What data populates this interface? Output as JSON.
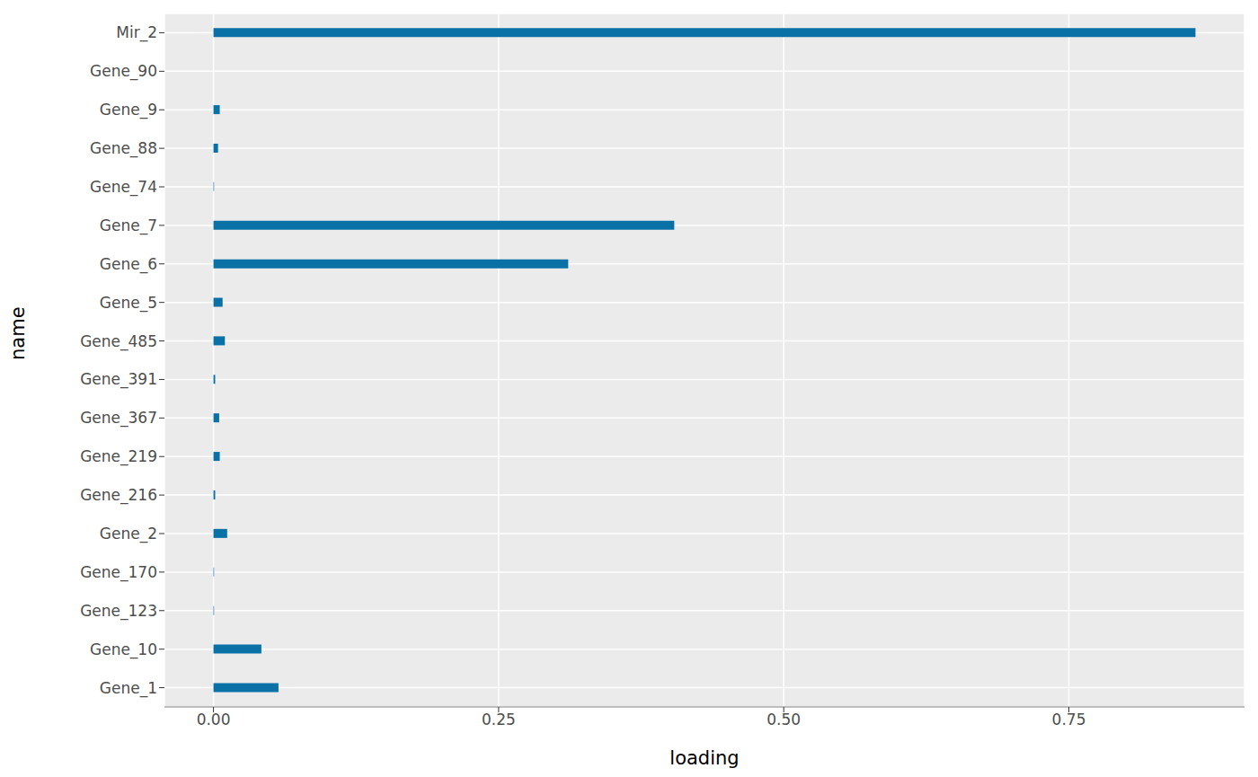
{
  "chart_data": {
    "type": "bar",
    "orientation": "horizontal",
    "x_label": "loading",
    "y_label": "name",
    "categories": [
      "Mir_2",
      "Gene_90",
      "Gene_9",
      "Gene_88",
      "Gene_74",
      "Gene_7",
      "Gene_6",
      "Gene_5",
      "Gene_485",
      "Gene_391",
      "Gene_367",
      "Gene_219",
      "Gene_216",
      "Gene_2",
      "Gene_170",
      "Gene_123",
      "Gene_10",
      "Gene_1"
    ],
    "values": [
      0.861,
      0,
      0.0055,
      0.004,
      0.0005,
      0.404,
      0.311,
      0.008,
      0.01,
      0.0015,
      0.005,
      0.0055,
      0.0015,
      0.012,
      0.0005,
      0.0005,
      0.042,
      0.057
    ],
    "color": "#0a71a7",
    "xlim": [
      -0.043,
      0.904
    ],
    "xticks": [
      {
        "value": 0,
        "label": "0.00"
      },
      {
        "value": 0.25,
        "label": "0.25"
      },
      {
        "value": 0.5,
        "label": "0.50"
      },
      {
        "value": 0.75,
        "label": "0.75"
      }
    ],
    "grid": true
  }
}
